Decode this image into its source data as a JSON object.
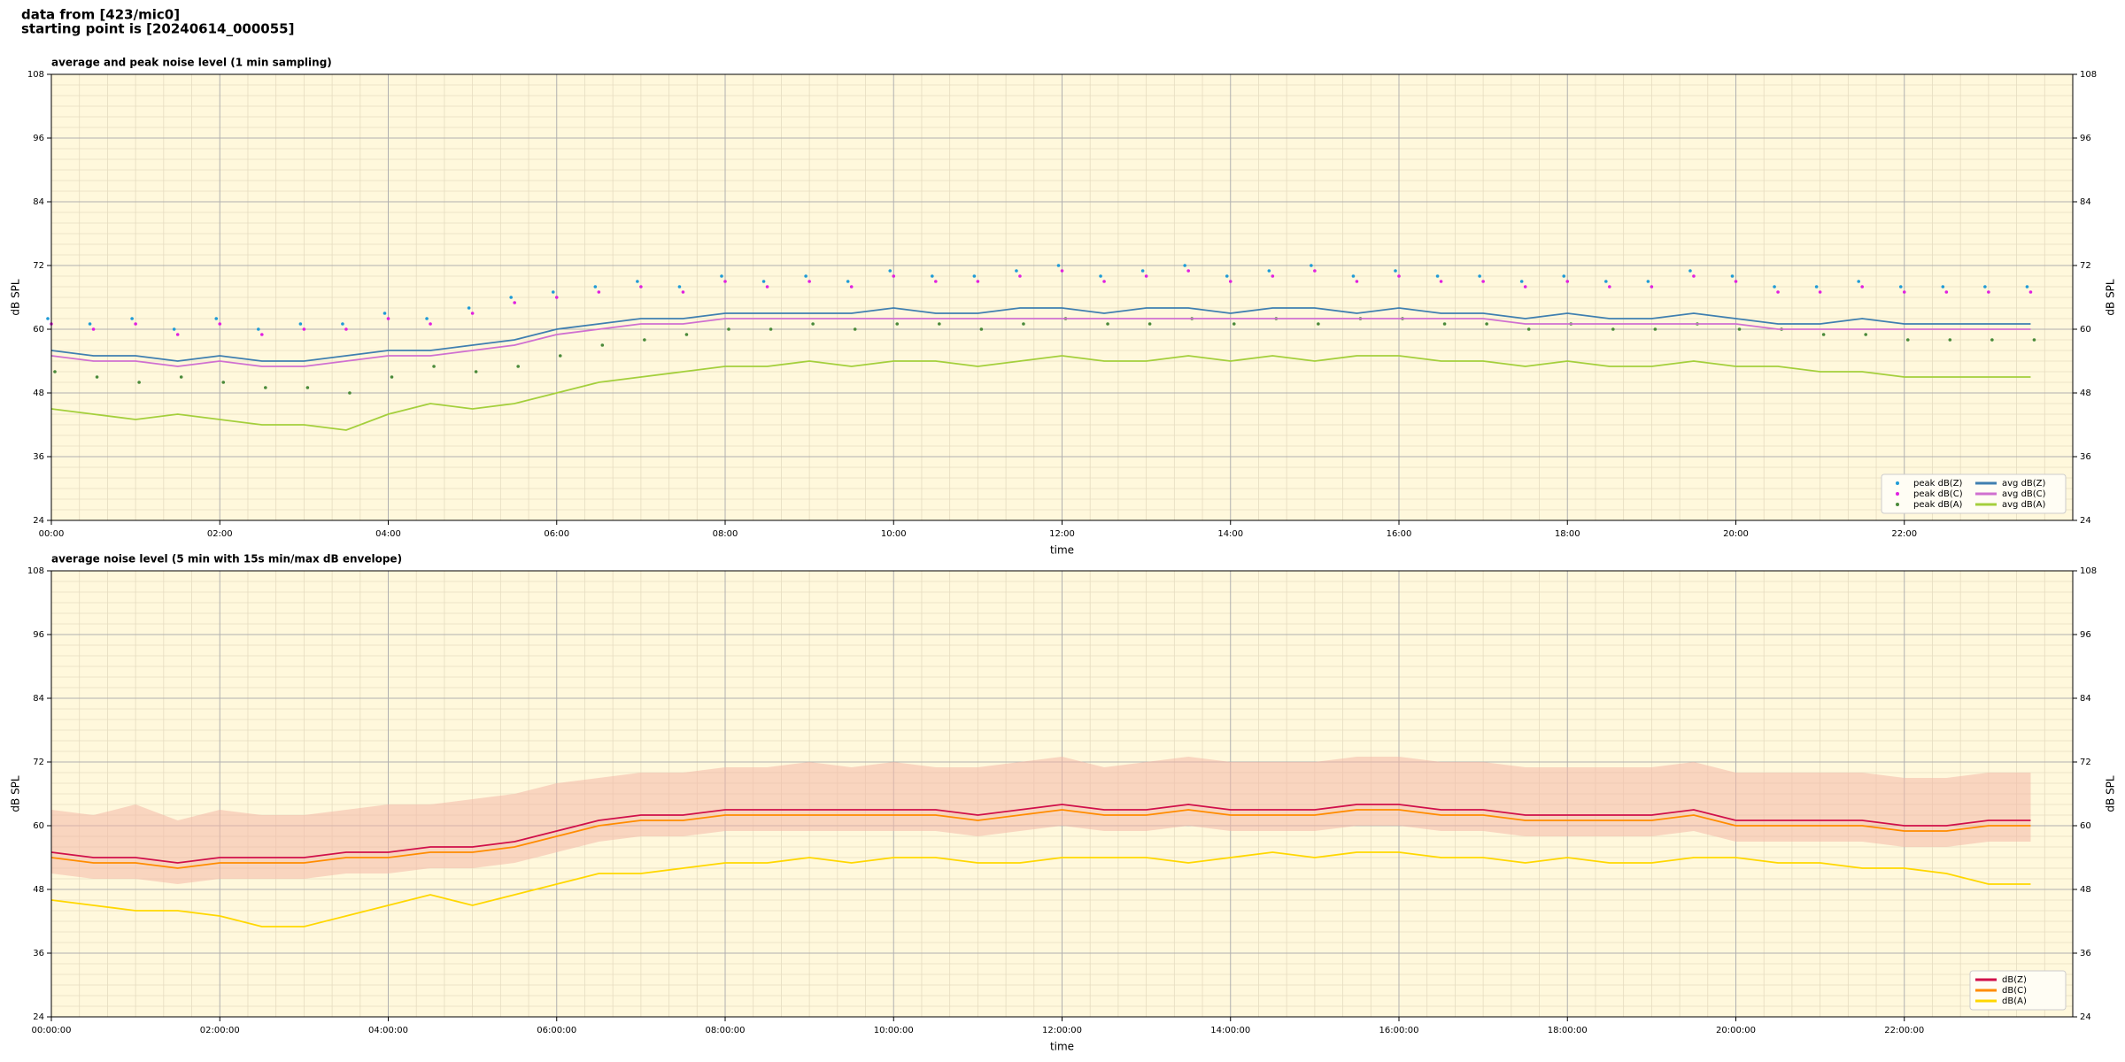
{
  "header": {
    "lines": [
      "data from [423/mic0]",
      "starting point is [20240614_000055]"
    ]
  },
  "chart_data": [
    {
      "type": "line",
      "title": "average and peak noise level (1 min sampling)",
      "xlabel": "time",
      "ylabel": "dB SPL",
      "y2label": "dB SPL",
      "xlim": [
        0,
        24
      ],
      "ylim": [
        24,
        108
      ],
      "xticks": [
        {
          "value": 0,
          "label": "00:00"
        },
        {
          "value": 2,
          "label": "02:00"
        },
        {
          "value": 4,
          "label": "04:00"
        },
        {
          "value": 6,
          "label": "06:00"
        },
        {
          "value": 8,
          "label": "08:00"
        },
        {
          "value": 10,
          "label": "10:00"
        },
        {
          "value": 12,
          "label": "12:00"
        },
        {
          "value": 14,
          "label": "14:00"
        },
        {
          "value": 16,
          "label": "16:00"
        },
        {
          "value": 18,
          "label": "18:00"
        },
        {
          "value": 20,
          "label": "20:00"
        },
        {
          "value": 22,
          "label": "22:00"
        }
      ],
      "yticks": [
        24,
        36,
        48,
        60,
        72,
        84,
        96,
        108
      ],
      "grid": true,
      "background": "#fff8dc",
      "legend": "lower right",
      "legend_columns": 2,
      "x": [
        0,
        0.5,
        1,
        1.5,
        2,
        2.5,
        3,
        3.5,
        4,
        4.5,
        5,
        5.5,
        6,
        6.5,
        7,
        7.5,
        8,
        8.5,
        9,
        9.5,
        10,
        10.5,
        11,
        11.5,
        12,
        12.5,
        13,
        13.5,
        14,
        14.5,
        15,
        15.5,
        16,
        16.5,
        17,
        17.5,
        18,
        18.5,
        19,
        19.5,
        20,
        20.5,
        21,
        21.5,
        22,
        22.5,
        23,
        23.5
      ],
      "series": [
        {
          "name": "peak dB(Z)",
          "kind": "scatter",
          "color": "#1f9bd6",
          "values": [
            62,
            61,
            62,
            60,
            62,
            60,
            61,
            61,
            63,
            62,
            64,
            66,
            67,
            68,
            69,
            68,
            70,
            69,
            70,
            69,
            71,
            70,
            70,
            71,
            72,
            70,
            71,
            72,
            70,
            71,
            72,
            70,
            71,
            70,
            70,
            69,
            70,
            69,
            69,
            71,
            70,
            68,
            68,
            69,
            68,
            68,
            68,
            68
          ]
        },
        {
          "name": "peak dB(C)",
          "kind": "scatter",
          "color": "#e020e0",
          "values": [
            61,
            60,
            61,
            59,
            61,
            59,
            60,
            60,
            62,
            61,
            63,
            65,
            66,
            67,
            68,
            67,
            69,
            68,
            69,
            68,
            70,
            69,
            69,
            70,
            71,
            69,
            70,
            71,
            69,
            70,
            71,
            69,
            70,
            69,
            69,
            68,
            69,
            68,
            68,
            70,
            69,
            67,
            67,
            68,
            67,
            67,
            67,
            67
          ]
        },
        {
          "name": "peak dB(A)",
          "kind": "scatter",
          "color": "#4a8a3a",
          "values": [
            52,
            51,
            50,
            51,
            50,
            49,
            49,
            48,
            51,
            53,
            52,
            53,
            55,
            57,
            58,
            59,
            60,
            60,
            61,
            60,
            61,
            61,
            60,
            61,
            62,
            61,
            61,
            62,
            61,
            62,
            61,
            62,
            62,
            61,
            61,
            60,
            61,
            60,
            60,
            61,
            60,
            60,
            59,
            59,
            58,
            58,
            58,
            58
          ]
        },
        {
          "name": "avg dB(Z)",
          "kind": "line",
          "color": "#3f7fb0",
          "values": [
            56,
            55,
            55,
            54,
            55,
            54,
            54,
            55,
            56,
            56,
            57,
            58,
            60,
            61,
            62,
            62,
            63,
            63,
            63,
            63,
            64,
            63,
            63,
            64,
            64,
            63,
            64,
            64,
            63,
            64,
            64,
            63,
            64,
            63,
            63,
            62,
            63,
            62,
            62,
            63,
            62,
            61,
            61,
            62,
            61,
            61,
            61,
            61
          ]
        },
        {
          "name": "avg dB(C)",
          "kind": "line",
          "color": "#d070d0",
          "values": [
            55,
            54,
            54,
            53,
            54,
            53,
            53,
            54,
            55,
            55,
            56,
            57,
            59,
            60,
            61,
            61,
            62,
            62,
            62,
            62,
            62,
            62,
            62,
            62,
            62,
            62,
            62,
            62,
            62,
            62,
            62,
            62,
            62,
            62,
            62,
            61,
            61,
            61,
            61,
            61,
            61,
            60,
            60,
            60,
            60,
            60,
            60,
            60
          ]
        },
        {
          "name": "avg dB(A)",
          "kind": "line",
          "color": "#a4cf3c",
          "values": [
            45,
            44,
            43,
            44,
            43,
            42,
            42,
            41,
            44,
            46,
            45,
            46,
            48,
            50,
            51,
            52,
            53,
            53,
            54,
            53,
            54,
            54,
            53,
            54,
            55,
            54,
            54,
            55,
            54,
            55,
            54,
            55,
            55,
            54,
            54,
            53,
            54,
            53,
            53,
            54,
            53,
            53,
            52,
            52,
            51,
            51,
            51,
            51
          ]
        }
      ]
    },
    {
      "type": "line",
      "title": "average noise level (5 min with 15s min/max dB envelope)",
      "xlabel": "time",
      "ylabel": "dB SPL",
      "y2label": "dB SPL",
      "xlim": [
        0,
        24
      ],
      "ylim": [
        24,
        108
      ],
      "xticks": [
        {
          "value": 0,
          "label": "00:00:00"
        },
        {
          "value": 2,
          "label": "02:00:00"
        },
        {
          "value": 4,
          "label": "04:00:00"
        },
        {
          "value": 6,
          "label": "06:00:00"
        },
        {
          "value": 8,
          "label": "08:00:00"
        },
        {
          "value": 10,
          "label": "10:00:00"
        },
        {
          "value": 12,
          "label": "12:00:00"
        },
        {
          "value": 14,
          "label": "14:00:00"
        },
        {
          "value": 16,
          "label": "16:00:00"
        },
        {
          "value": 18,
          "label": "18:00:00"
        },
        {
          "value": 20,
          "label": "20:00:00"
        },
        {
          "value": 22,
          "label": "22:00:00"
        }
      ],
      "yticks": [
        24,
        36,
        48,
        60,
        72,
        84,
        96,
        108
      ],
      "grid": true,
      "background": "#fff8dc",
      "legend": "lower right",
      "legend_columns": 1,
      "x": [
        0,
        0.5,
        1,
        1.5,
        2,
        2.5,
        3,
        3.5,
        4,
        4.5,
        5,
        5.5,
        6,
        6.5,
        7,
        7.5,
        8,
        8.5,
        9,
        9.5,
        10,
        10.5,
        11,
        11.5,
        12,
        12.5,
        13,
        13.5,
        14,
        14.5,
        15,
        15.5,
        16,
        16.5,
        17,
        17.5,
        18,
        18.5,
        19,
        19.5,
        20,
        20.5,
        21,
        21.5,
        22,
        22.5,
        23,
        23.5
      ],
      "envelope": {
        "color": "#f4b8a8",
        "upper": [
          63,
          62,
          64,
          61,
          63,
          62,
          62,
          63,
          64,
          64,
          65,
          66,
          68,
          69,
          70,
          70,
          71,
          71,
          72,
          71,
          72,
          71,
          71,
          72,
          73,
          71,
          72,
          73,
          72,
          72,
          72,
          73,
          73,
          72,
          72,
          71,
          71,
          71,
          71,
          72,
          70,
          70,
          70,
          70,
          69,
          69,
          70,
          70
        ],
        "lower": [
          51,
          50,
          50,
          49,
          50,
          50,
          50,
          51,
          51,
          52,
          52,
          53,
          55,
          57,
          58,
          58,
          59,
          59,
          59,
          59,
          59,
          59,
          58,
          59,
          60,
          59,
          59,
          60,
          59,
          59,
          59,
          60,
          60,
          59,
          59,
          58,
          58,
          58,
          58,
          59,
          57,
          57,
          57,
          57,
          56,
          56,
          57,
          57
        ]
      },
      "series": [
        {
          "name": "dB(Z)",
          "kind": "line",
          "color": "#d0104a",
          "values": [
            55,
            54,
            54,
            53,
            54,
            54,
            54,
            55,
            55,
            56,
            56,
            57,
            59,
            61,
            62,
            62,
            63,
            63,
            63,
            63,
            63,
            63,
            62,
            63,
            64,
            63,
            63,
            64,
            63,
            63,
            63,
            64,
            64,
            63,
            63,
            62,
            62,
            62,
            62,
            63,
            61,
            61,
            61,
            61,
            60,
            60,
            61,
            61
          ]
        },
        {
          "name": "dB(C)",
          "kind": "line",
          "color": "#ff8c00",
          "values": [
            54,
            53,
            53,
            52,
            53,
            53,
            53,
            54,
            54,
            55,
            55,
            56,
            58,
            60,
            61,
            61,
            62,
            62,
            62,
            62,
            62,
            62,
            61,
            62,
            63,
            62,
            62,
            63,
            62,
            62,
            62,
            63,
            63,
            62,
            62,
            61,
            61,
            61,
            61,
            62,
            60,
            60,
            60,
            60,
            59,
            59,
            60,
            60
          ]
        },
        {
          "name": "dB(A)",
          "kind": "line",
          "color": "#ffd700",
          "values": [
            46,
            45,
            44,
            44,
            43,
            41,
            41,
            43,
            45,
            47,
            45,
            47,
            49,
            51,
            51,
            52,
            53,
            53,
            54,
            53,
            54,
            54,
            53,
            53,
            54,
            54,
            54,
            53,
            54,
            55,
            54,
            55,
            55,
            54,
            54,
            53,
            54,
            53,
            53,
            54,
            54,
            53,
            53,
            52,
            52,
            51,
            49,
            49
          ]
        }
      ]
    }
  ]
}
